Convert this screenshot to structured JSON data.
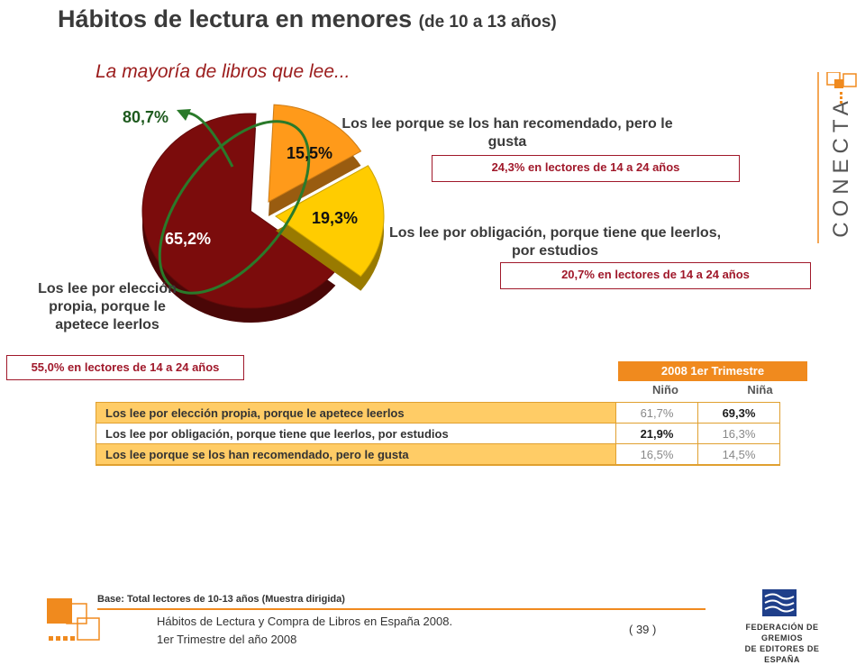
{
  "title": {
    "main": "Hábitos de lectura en menores",
    "sub": "(de 10 a 13 años)"
  },
  "subtitle": "La mayoría de libros que lee...",
  "brand": {
    "logo_text": "CONECTA",
    "accent": "#f08a1e"
  },
  "chart_data": {
    "type": "pie",
    "slices": [
      {
        "label": "Los lee por elección propia, porque le apetece leerlos",
        "value": 65.2,
        "value_label": "65,2%",
        "color": "#7b0c0c"
      },
      {
        "label": "Los lee porque se los han recomendado, pero le gusta",
        "value": 15.5,
        "value_label": "15,5%",
        "color": "#ff9a1a"
      },
      {
        "label": "Los lee por obligación, porque tiene que leerlos, por estudios",
        "value": 19.3,
        "value_label": "19,3%",
        "color": "#ffcc00"
      }
    ],
    "annotation": "80,7%"
  },
  "callouts": {
    "recomendado": {
      "label": "Los lee porque se los han recomendado, pero le gusta",
      "box": "24,3% en lectores de 14 a 24 años"
    },
    "obligacion": {
      "label": "Los lee por obligación, porque tiene que leerlos, por estudios",
      "box": "20,7% en lectores de 14 a 24 años"
    },
    "eleccion": {
      "label": "Los lee por elección propia, porque le apetece leerlos",
      "box": "55,0% en lectores de 14 a 24 años"
    }
  },
  "table": {
    "period": "2008 1er Trimestre",
    "columns": [
      "Niño",
      "Niña"
    ],
    "rows": [
      {
        "label": "Los lee por elección propia, porque le apetece leerlos",
        "nino": "61,7%",
        "nina": "69,3%"
      },
      {
        "label": "Los lee por obligación, porque tiene que leerlos, por estudios",
        "nino": "21,9%",
        "nina": "16,3%"
      },
      {
        "label": "Los lee porque se los han recomendado, pero le gusta",
        "nino": "16,5%",
        "nina": "14,5%"
      }
    ]
  },
  "footer": {
    "base": "Base: Total lectores de 10-13 años (Muestra dirigida)",
    "line1": "Hábitos de Lectura y Compra de Libros en España 2008.",
    "line2": "1er Trimestre del año 2008",
    "page": "( 39 )",
    "federation_line1": "FEDERACIÓN DE GREMIOS",
    "federation_line2": "DE EDITORES DE ESPAÑA"
  }
}
